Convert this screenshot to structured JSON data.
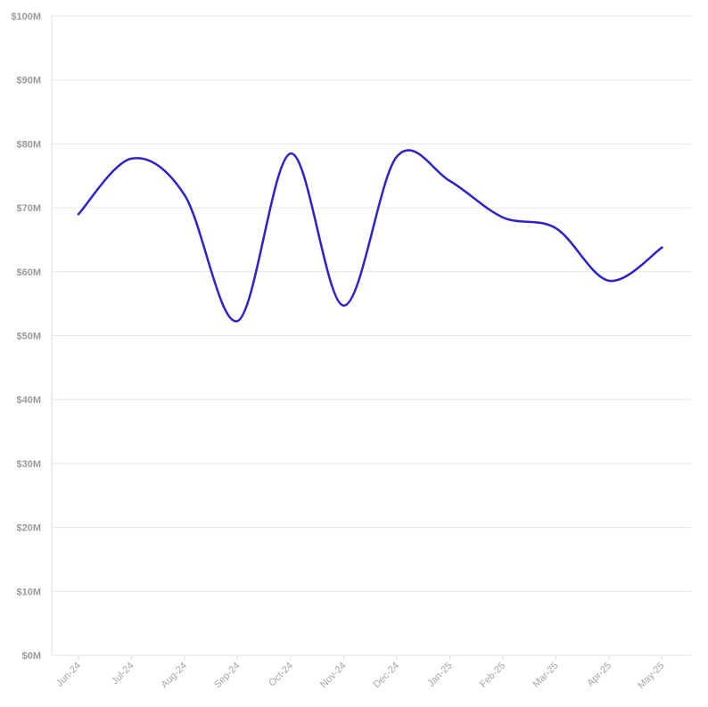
{
  "chart_data": {
    "type": "line",
    "categories": [
      "Jun-24",
      "Jul-24",
      "Aug-24",
      "Sep-24",
      "Oct-24",
      "Nov-24",
      "Dec-24",
      "Jan-25",
      "Feb-25",
      "Mar-25",
      "Apr-25",
      "May-25"
    ],
    "series": [
      {
        "values": [
          69.0,
          77.7,
          72.0,
          52.3,
          78.5,
          54.7,
          78.0,
          74.2,
          68.5,
          66.8,
          58.6,
          63.8
        ]
      }
    ],
    "y_ticks": [
      "$0M",
      "$10M",
      "$20M",
      "$30M",
      "$40M",
      "$50M",
      "$60M",
      "$70M",
      "$80M",
      "$90M",
      "$100M"
    ],
    "ylim": [
      0,
      100
    ],
    "y_unit": "$M",
    "grid": true,
    "line_color": "#2b22cc",
    "grid_color": "#e6e6e6",
    "tick_color": "#9a9a9a"
  }
}
